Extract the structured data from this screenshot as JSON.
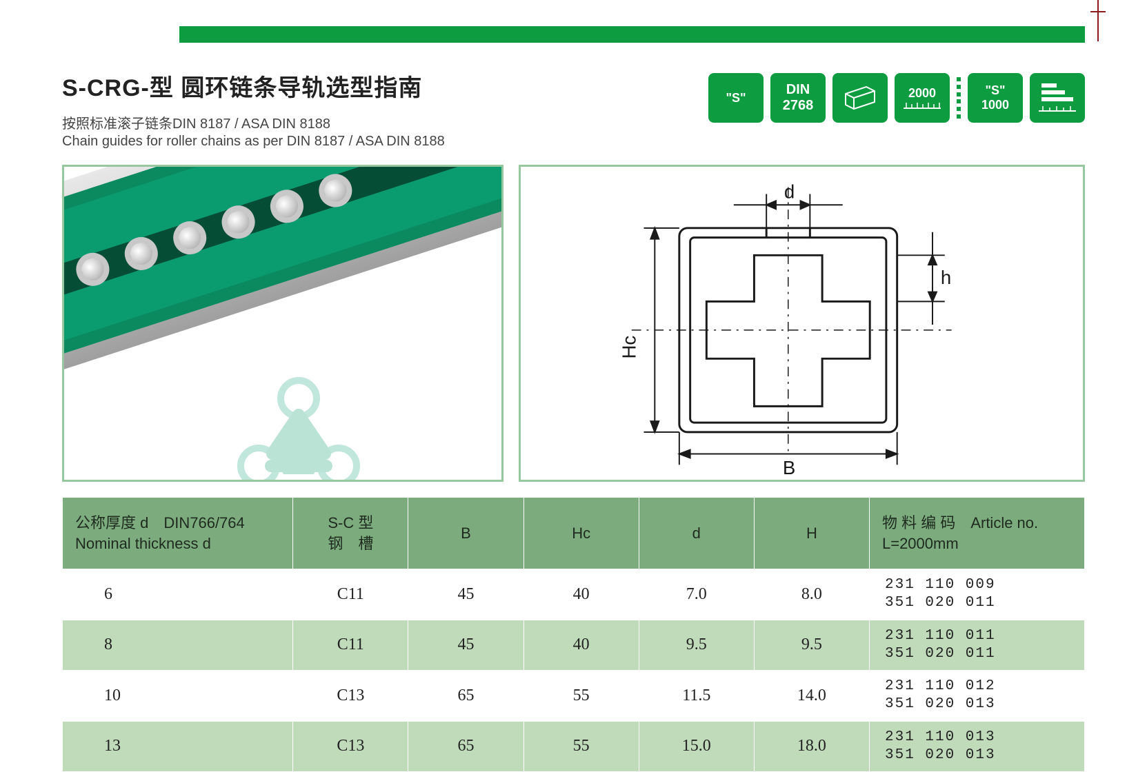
{
  "colors": {
    "brand_green": "#0d9c3f",
    "frame_border": "#96c79f",
    "table_header_bg": "#7cac7e",
    "table_row_alt_bg": "#c0dbb9",
    "product_green": "#0a9c6f",
    "product_green_dark": "#064d36"
  },
  "header": {
    "title": "S-CRG-型 圆环链条导轨选型指南",
    "subtitle_cn": "按照标准滚子链条DIN 8187 / ASA DIN 8188",
    "subtitle_en": "Chain guides for roller chains as per DIN 8187 / ASA DIN 8188"
  },
  "badges": {
    "b1_line1": "\"S\"",
    "b2_line1": "DIN",
    "b2_line2": "2768",
    "b4_line1": "2000",
    "b5_line1": "\"S\"",
    "b5_line2": "1000"
  },
  "diagram": {
    "labels": {
      "d": "d",
      "h": "h",
      "Hc": "Hc",
      "B": "B"
    },
    "stroke": "#1a1a1a",
    "dash": "6,6"
  },
  "table": {
    "columns": [
      {
        "key": "nominal",
        "label_cn": "公称厚度 d　DIN766/764",
        "label_en": "Nominal thickness d",
        "width_class": "col-nom",
        "align": "left"
      },
      {
        "key": "sc",
        "label_cn": "S-C 型",
        "label_en": "钢　槽",
        "width_class": "col-sc",
        "align": "center"
      },
      {
        "key": "B",
        "label_cn": "B",
        "label_en": "",
        "width_class": "col-std",
        "align": "center"
      },
      {
        "key": "Hc",
        "label_cn": "Hc",
        "label_en": "",
        "width_class": "col-std",
        "align": "center"
      },
      {
        "key": "d",
        "label_cn": "d",
        "label_en": "",
        "width_class": "col-std",
        "align": "center"
      },
      {
        "key": "H",
        "label_cn": "H",
        "label_en": "",
        "width_class": "col-std",
        "align": "center"
      },
      {
        "key": "article",
        "label_cn": "物 料 编 码　Article no.",
        "label_en": "L=2000mm",
        "width_class": "col-art",
        "align": "left"
      }
    ],
    "rows": [
      {
        "nominal": "6",
        "sc": "C11",
        "B": "45",
        "Hc": "40",
        "d": "7.0",
        "H": "8.0",
        "article1": "231 110 009",
        "article2": "351 020 011"
      },
      {
        "nominal": "8",
        "sc": "C11",
        "B": "45",
        "Hc": "40",
        "d": "9.5",
        "H": "9.5",
        "article1": "231 110 011",
        "article2": "351 020 011"
      },
      {
        "nominal": "10",
        "sc": "C13",
        "B": "65",
        "Hc": "55",
        "d": "11.5",
        "H": "14.0",
        "article1": "231 110 012",
        "article2": "351 020 013"
      },
      {
        "nominal": "13",
        "sc": "C13",
        "B": "65",
        "Hc": "55",
        "d": "15.0",
        "H": "18.0",
        "article1": "231 110 013",
        "article2": "351 020 013"
      }
    ]
  }
}
